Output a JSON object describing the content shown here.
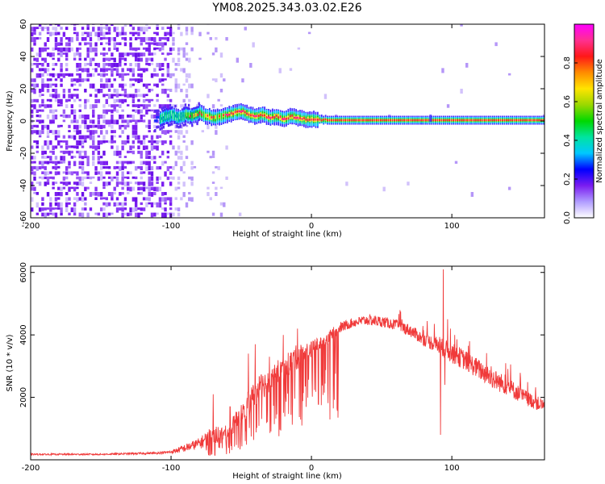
{
  "title": "YM08.2025.343.03.02.E26",
  "chart_data": [
    {
      "type": "heatmap",
      "name": "spectrogram",
      "xlabel": "Height of straight line (km)",
      "ylabel": "Frequency (Hz)",
      "xlim": [
        -200,
        166
      ],
      "ylim": [
        -60,
        60
      ],
      "xticks": [
        -200,
        -100,
        0,
        100
      ],
      "yticks": [
        -60,
        -40,
        -20,
        0,
        20,
        40,
        60
      ],
      "ridge": [
        [
          -110,
          0
        ],
        [
          -106,
          2
        ],
        [
          -100,
          4
        ],
        [
          -95,
          2
        ],
        [
          -90,
          4
        ],
        [
          -85,
          3
        ],
        [
          -80,
          5
        ],
        [
          -75,
          3
        ],
        [
          -70,
          2
        ],
        [
          -65,
          3
        ],
        [
          -60,
          4
        ],
        [
          -55,
          5
        ],
        [
          -50,
          6
        ],
        [
          -45,
          4
        ],
        [
          -40,
          3
        ],
        [
          -35,
          4
        ],
        [
          -30,
          2
        ],
        [
          -25,
          3
        ],
        [
          -20,
          1
        ],
        [
          -15,
          3
        ],
        [
          -10,
          2
        ],
        [
          -5,
          1
        ],
        [
          0,
          1
        ],
        [
          10,
          0.5
        ],
        [
          40,
          0.5
        ],
        [
          85,
          0.5
        ],
        [
          120,
          0.5
        ],
        [
          166,
          0.5
        ]
      ],
      "noise_until_km": -85
    },
    {
      "type": "colorbar",
      "name": "colorbar",
      "label": "Normalized spectral amplitude",
      "range": [
        0,
        1
      ],
      "ticks": [
        "0.0",
        "0.2",
        "0.4",
        "0.6",
        "0.8"
      ],
      "colors": [
        "#ffffff",
        "#b09cff",
        "#7a1cf0",
        "#0000ff",
        "#00c8ff",
        "#00e4a0",
        "#00d800",
        "#9ad800",
        "#ffe400",
        "#ff8c00",
        "#ff1818",
        "#ff3090",
        "#ff00ff"
      ]
    },
    {
      "type": "line",
      "name": "snr",
      "xlabel": "Height of straight line (km)",
      "ylabel": "SNR (10 * v/v)",
      "xlim": [
        -200,
        166
      ],
      "ylim": [
        0,
        6200
      ],
      "xticks": [
        -200,
        -100,
        0,
        100
      ],
      "yticks": [
        2000,
        4000,
        6000
      ],
      "series_color": "#f03a3a",
      "envelope": [
        [
          -200,
          150,
          200
        ],
        [
          -150,
          150,
          200
        ],
        [
          -110,
          180,
          250
        ],
        [
          -100,
          200,
          300
        ],
        [
          -90,
          250,
          500
        ],
        [
          -80,
          350,
          700
        ],
        [
          -70,
          450,
          1100
        ],
        [
          -60,
          600,
          1100
        ],
        [
          -50,
          1100,
          1800
        ],
        [
          -40,
          1700,
          2600
        ],
        [
          -30,
          2150,
          3000
        ],
        [
          -20,
          2550,
          3350
        ],
        [
          -10,
          2900,
          3700
        ],
        [
          0,
          3300,
          3800
        ],
        [
          10,
          3650,
          4050
        ],
        [
          20,
          4050,
          4400
        ],
        [
          30,
          4250,
          4550
        ],
        [
          40,
          4300,
          4650
        ],
        [
          50,
          4250,
          4600
        ],
        [
          60,
          4150,
          4500
        ],
        [
          70,
          3950,
          4350
        ],
        [
          80,
          3650,
          4050
        ],
        [
          90,
          3400,
          3950
        ],
        [
          100,
          3100,
          3750
        ],
        [
          110,
          2850,
          3500
        ],
        [
          120,
          2550,
          3200
        ],
        [
          130,
          2250,
          2900
        ],
        [
          140,
          2050,
          2650
        ],
        [
          150,
          1800,
          2300
        ],
        [
          160,
          1600,
          2050
        ],
        [
          166,
          1500,
          1950
        ]
      ],
      "spikes": [
        [
          -70,
          2100
        ],
        [
          -58,
          1700
        ],
        [
          -45,
          3400
        ],
        [
          -40,
          3700
        ],
        [
          -30,
          3300
        ],
        [
          -20,
          4000
        ],
        [
          -10,
          4200
        ],
        [
          94,
          6100
        ],
        [
          95,
          2400
        ],
        [
          97,
          4500
        ],
        [
          92,
          800
        ]
      ]
    }
  ]
}
